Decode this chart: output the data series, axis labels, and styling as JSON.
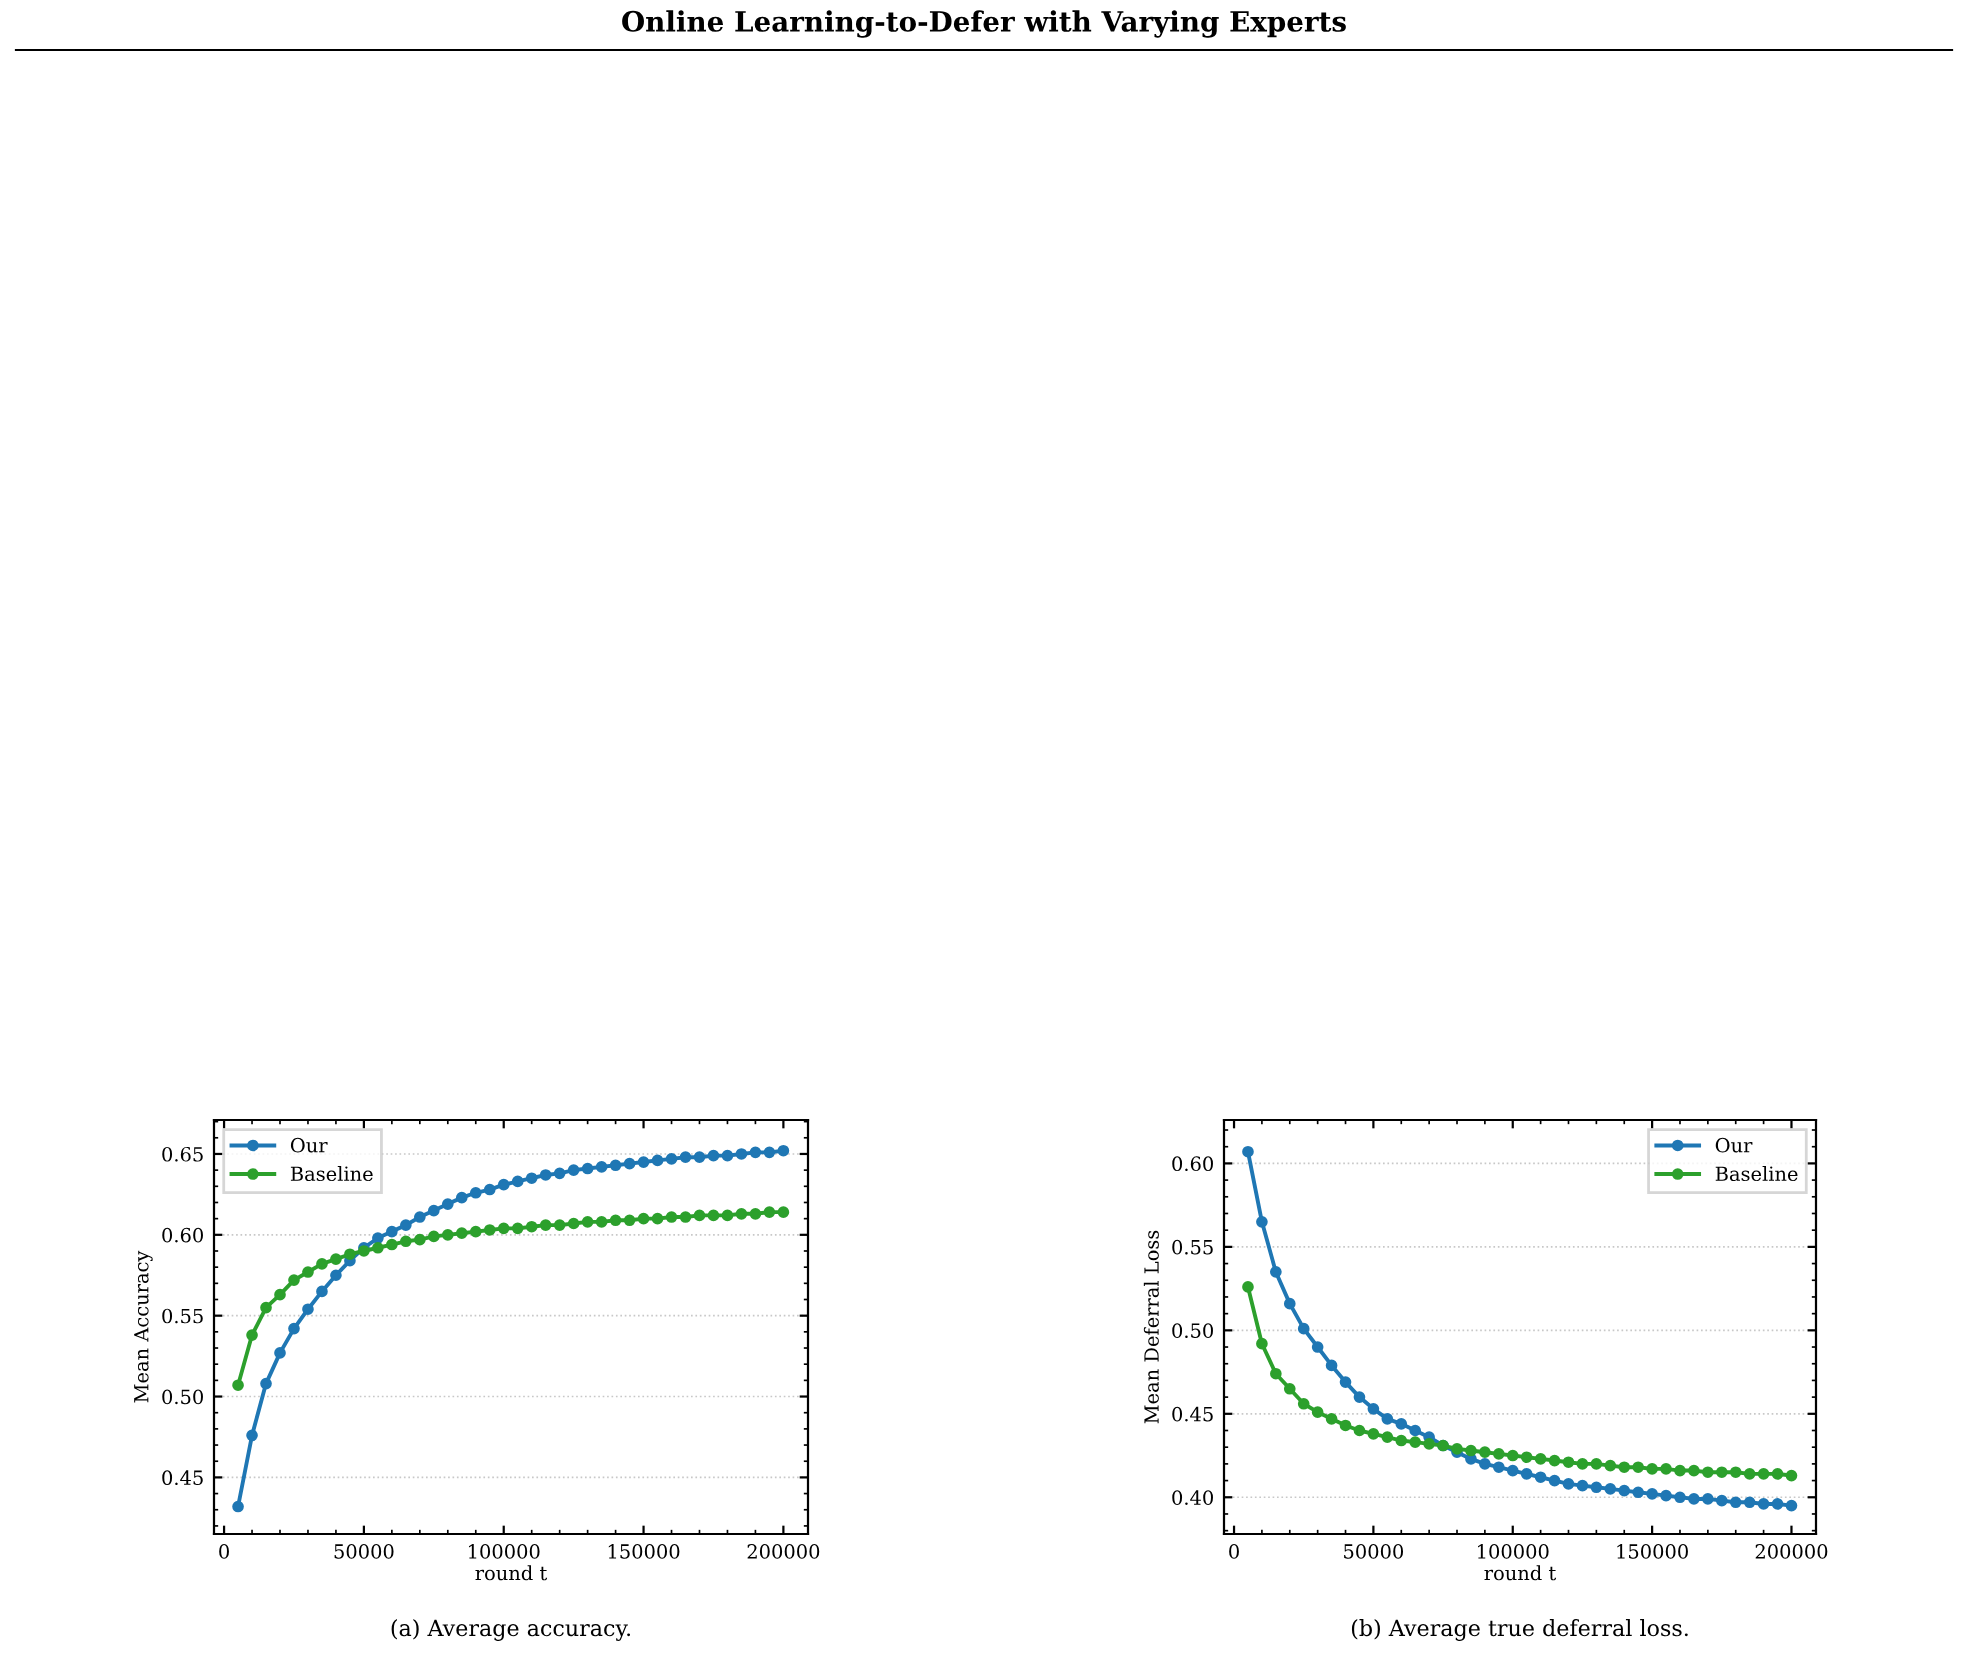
{
  "chart_data": [
    {
      "type": "line",
      "title": "Online Learning-to-Defer with Varying Experts",
      "xlabel": "round t",
      "ylabel": "Mean Accuracy",
      "annotations": [
        "(a) Average accuracy."
      ],
      "x": [
        5000,
        10000,
        15000,
        20000,
        25000,
        30000,
        35000,
        40000,
        45000,
        50000,
        55000,
        60000,
        65000,
        70000,
        75000,
        80000,
        85000,
        90000,
        95000,
        100000,
        105000,
        110000,
        115000,
        120000,
        125000,
        130000,
        135000,
        140000,
        145000,
        150000,
        155000,
        160000,
        165000,
        170000,
        175000,
        180000,
        185000,
        190000,
        195000,
        200000
      ],
      "series": [
        {
          "name": "Our",
          "color": "#1f77b4",
          "values": [
            0.432,
            0.476,
            0.508,
            0.527,
            0.542,
            0.554,
            0.565,
            0.575,
            0.584,
            0.592,
            0.598,
            0.602,
            0.606,
            0.611,
            0.615,
            0.619,
            0.623,
            0.626,
            0.628,
            0.631,
            0.633,
            0.635,
            0.637,
            0.638,
            0.64,
            0.641,
            0.642,
            0.643,
            0.644,
            0.645,
            0.646,
            0.647,
            0.648,
            0.648,
            0.649,
            0.649,
            0.65,
            0.651,
            0.651,
            0.652
          ]
        },
        {
          "name": "Baseline",
          "color": "#2ca02c",
          "values": [
            0.507,
            0.538,
            0.555,
            0.563,
            0.572,
            0.577,
            0.582,
            0.585,
            0.588,
            0.59,
            0.592,
            0.594,
            0.596,
            0.597,
            0.599,
            0.6,
            0.601,
            0.602,
            0.603,
            0.604,
            0.604,
            0.605,
            0.606,
            0.606,
            0.607,
            0.608,
            0.608,
            0.609,
            0.609,
            0.61,
            0.61,
            0.611,
            0.611,
            0.612,
            0.612,
            0.612,
            0.613,
            0.613,
            0.614,
            0.614
          ]
        }
      ],
      "xlim": [
        -3600,
        208800
      ],
      "xticks": [
        0,
        50000,
        100000,
        150000,
        200000
      ],
      "ylim": [
        0.415,
        0.671
      ],
      "yticks": [
        0.45,
        {
          "value": 0.5,
          "label": "0.50"
        },
        0.55,
        {
          "value": 0.6,
          "label": "0.60"
        },
        0.65
      ],
      "grid": "y",
      "legend": "top left",
      "marker": "circle",
      "line_style": "solid"
    },
    {
      "type": "line",
      "xlabel": "round t",
      "ylabel": "Mean Deferral Loss",
      "annotations": [
        "(b) Average true deferral loss."
      ],
      "x": [
        5000,
        10000,
        15000,
        20000,
        25000,
        30000,
        35000,
        40000,
        45000,
        50000,
        55000,
        60000,
        65000,
        70000,
        75000,
        80000,
        85000,
        90000,
        95000,
        100000,
        105000,
        110000,
        115000,
        120000,
        125000,
        130000,
        135000,
        140000,
        145000,
        150000,
        155000,
        160000,
        165000,
        170000,
        175000,
        180000,
        185000,
        190000,
        195000,
        200000
      ],
      "series": [
        {
          "name": "Our",
          "color": "#1f77b4",
          "values": [
            0.607,
            0.565,
            0.535,
            0.516,
            0.501,
            0.49,
            0.479,
            0.469,
            0.46,
            0.453,
            0.447,
            0.444,
            0.44,
            0.436,
            0.431,
            0.427,
            0.423,
            0.42,
            0.418,
            0.416,
            0.414,
            0.412,
            0.41,
            0.408,
            0.407,
            0.406,
            0.405,
            0.404,
            0.403,
            0.402,
            0.401,
            0.4,
            0.399,
            0.399,
            0.398,
            0.397,
            0.397,
            0.396,
            0.396,
            0.395
          ]
        },
        {
          "name": "Baseline",
          "color": "#2ca02c",
          "values": [
            0.526,
            0.492,
            0.474,
            0.465,
            0.456,
            0.451,
            0.447,
            0.443,
            0.44,
            0.438,
            0.436,
            0.434,
            0.433,
            0.432,
            0.431,
            0.429,
            0.428,
            0.427,
            0.426,
            0.425,
            0.424,
            0.423,
            0.422,
            0.421,
            0.42,
            0.42,
            0.419,
            0.418,
            0.418,
            0.417,
            0.417,
            0.416,
            0.416,
            0.415,
            0.415,
            0.415,
            0.414,
            0.414,
            0.414,
            0.413
          ]
        }
      ],
      "xlim": [
        -3600,
        208800
      ],
      "xticks": [
        0,
        50000,
        100000,
        150000,
        200000
      ],
      "ylim": [
        0.378,
        0.626
      ],
      "yticks": [
        {
          "value": 0.4,
          "label": "0.40"
        },
        0.45,
        {
          "value": 0.5,
          "label": "0.50"
        },
        0.55,
        {
          "value": 0.6,
          "label": "0.60"
        }
      ],
      "grid": "y",
      "legend": "top right",
      "marker": "circle",
      "line_style": "solid"
    }
  ]
}
